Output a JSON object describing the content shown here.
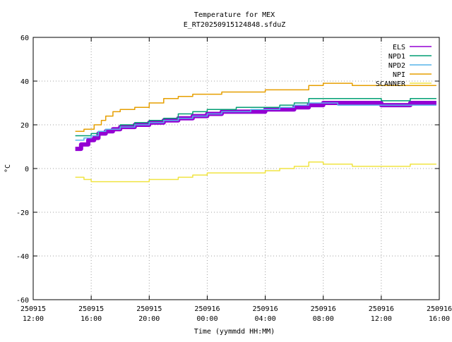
{
  "chart_data": {
    "type": "line",
    "title": "Temperature for MEX",
    "subtitle": "E_RT20250915124848.sfduZ",
    "xlabel": "Time (yymmdd HH:MM)",
    "ylabel": "°C",
    "ylim": [
      -60,
      60
    ],
    "yticks": [
      -60,
      -40,
      -20,
      0,
      20,
      40,
      60
    ],
    "xlim": [
      "2025-09-15 12:00",
      "2025-09-16 16:00"
    ],
    "xticks": [
      {
        "date": "250915",
        "time": "12:00",
        "hour": 0
      },
      {
        "date": "250915",
        "time": "16:00",
        "hour": 4
      },
      {
        "date": "250915",
        "time": "20:00",
        "hour": 8
      },
      {
        "date": "250916",
        "time": "00:00",
        "hour": 12
      },
      {
        "date": "250916",
        "time": "04:00",
        "hour": 16
      },
      {
        "date": "250916",
        "time": "08:00",
        "hour": 20
      },
      {
        "date": "250916",
        "time": "12:00",
        "hour": 24
      },
      {
        "date": "250916",
        "time": "16:00",
        "hour": 28
      }
    ],
    "grid": true,
    "legend_position": "top-right",
    "series": [
      {
        "name": "ELS",
        "color": "#9400d3",
        "width": 6,
        "points": [
          [
            2.9,
            9
          ],
          [
            3.3,
            11
          ],
          [
            3.8,
            13
          ],
          [
            4.2,
            14
          ],
          [
            4.5,
            16
          ],
          [
            5.0,
            17
          ],
          [
            5.5,
            18
          ],
          [
            6.0,
            19
          ],
          [
            7.0,
            20
          ],
          [
            8.0,
            21
          ],
          [
            9.0,
            22
          ],
          [
            10.0,
            23
          ],
          [
            11.0,
            24
          ],
          [
            12.0,
            25
          ],
          [
            13.0,
            26
          ],
          [
            14.0,
            26
          ],
          [
            15.0,
            26
          ],
          [
            16.0,
            27
          ],
          [
            17.0,
            27
          ],
          [
            18.0,
            28
          ],
          [
            19.0,
            29
          ],
          [
            20.0,
            30
          ],
          [
            21.0,
            30
          ],
          [
            22.0,
            30
          ],
          [
            23.0,
            30
          ],
          [
            24.0,
            29
          ],
          [
            25.0,
            29
          ],
          [
            26.0,
            30
          ],
          [
            27.0,
            30
          ],
          [
            27.8,
            30
          ]
        ]
      },
      {
        "name": "NPD1",
        "color": "#009e73",
        "width": 1.5,
        "points": [
          [
            2.9,
            15
          ],
          [
            3.5,
            15
          ],
          [
            4.0,
            16
          ],
          [
            4.5,
            17
          ],
          [
            5.0,
            18
          ],
          [
            6.0,
            20
          ],
          [
            7.0,
            21
          ],
          [
            8.0,
            22
          ],
          [
            9.0,
            23
          ],
          [
            10.0,
            25
          ],
          [
            11.0,
            26
          ],
          [
            12.0,
            27
          ],
          [
            13.0,
            27
          ],
          [
            14.0,
            28
          ],
          [
            15.0,
            28
          ],
          [
            16.0,
            28
          ],
          [
            17.0,
            29
          ],
          [
            18.0,
            30
          ],
          [
            19.0,
            32
          ],
          [
            20.0,
            32
          ],
          [
            21.0,
            32
          ],
          [
            22.0,
            32
          ],
          [
            23.0,
            32
          ],
          [
            24.0,
            31
          ],
          [
            25.0,
            31
          ],
          [
            26.0,
            32
          ],
          [
            27.0,
            32
          ],
          [
            27.8,
            32
          ]
        ]
      },
      {
        "name": "NPD2",
        "color": "#56b4e9",
        "width": 1.5,
        "points": [
          [
            2.9,
            13
          ],
          [
            3.5,
            14
          ],
          [
            4.0,
            15
          ],
          [
            4.5,
            17
          ],
          [
            5.0,
            18
          ],
          [
            6.0,
            19
          ],
          [
            7.0,
            20
          ],
          [
            8.0,
            21
          ],
          [
            9.0,
            22
          ],
          [
            10.0,
            23
          ],
          [
            11.0,
            24
          ],
          [
            12.0,
            25
          ],
          [
            13.0,
            26
          ],
          [
            14.0,
            26
          ],
          [
            15.0,
            27
          ],
          [
            16.0,
            27
          ],
          [
            17.0,
            28
          ],
          [
            18.0,
            29
          ],
          [
            19.0,
            30
          ],
          [
            20.0,
            30
          ],
          [
            21.0,
            29
          ],
          [
            22.0,
            29
          ],
          [
            23.0,
            29
          ],
          [
            24.0,
            29
          ],
          [
            25.0,
            29
          ],
          [
            26.0,
            29
          ],
          [
            27.0,
            29
          ],
          [
            27.8,
            29
          ]
        ]
      },
      {
        "name": "NPI",
        "color": "#e69f00",
        "width": 1.5,
        "points": [
          [
            2.9,
            17
          ],
          [
            3.5,
            18
          ],
          [
            4.2,
            20
          ],
          [
            4.7,
            22
          ],
          [
            5.0,
            24
          ],
          [
            5.5,
            26
          ],
          [
            6.0,
            27
          ],
          [
            7.0,
            28
          ],
          [
            8.0,
            30
          ],
          [
            9.0,
            32
          ],
          [
            10.0,
            33
          ],
          [
            11.0,
            34
          ],
          [
            12.0,
            34
          ],
          [
            13.0,
            35
          ],
          [
            14.0,
            35
          ],
          [
            15.0,
            35
          ],
          [
            16.0,
            36
          ],
          [
            17.0,
            36
          ],
          [
            18.0,
            36
          ],
          [
            19.0,
            38
          ],
          [
            20.0,
            39
          ],
          [
            21.0,
            39
          ],
          [
            22.0,
            38
          ],
          [
            23.0,
            38
          ],
          [
            24.0,
            38
          ],
          [
            25.0,
            38
          ],
          [
            26.0,
            38
          ],
          [
            27.0,
            38
          ],
          [
            27.8,
            38
          ]
        ]
      },
      {
        "name": "SCANNER",
        "color": "#f0e442",
        "width": 1.5,
        "points": [
          [
            2.9,
            -4
          ],
          [
            3.5,
            -5
          ],
          [
            4.0,
            -6
          ],
          [
            5.0,
            -6
          ],
          [
            6.0,
            -6
          ],
          [
            7.0,
            -6
          ],
          [
            8.0,
            -5
          ],
          [
            9.0,
            -5
          ],
          [
            10.0,
            -4
          ],
          [
            11.0,
            -3
          ],
          [
            12.0,
            -2
          ],
          [
            13.0,
            -2
          ],
          [
            14.0,
            -2
          ],
          [
            15.0,
            -2
          ],
          [
            16.0,
            -1
          ],
          [
            17.0,
            0
          ],
          [
            18.0,
            1
          ],
          [
            19.0,
            3
          ],
          [
            20.0,
            2
          ],
          [
            21.0,
            2
          ],
          [
            22.0,
            1
          ],
          [
            23.0,
            1
          ],
          [
            24.0,
            1
          ],
          [
            25.0,
            1
          ],
          [
            26.0,
            2
          ],
          [
            27.0,
            2
          ],
          [
            27.8,
            2
          ]
        ]
      }
    ]
  }
}
